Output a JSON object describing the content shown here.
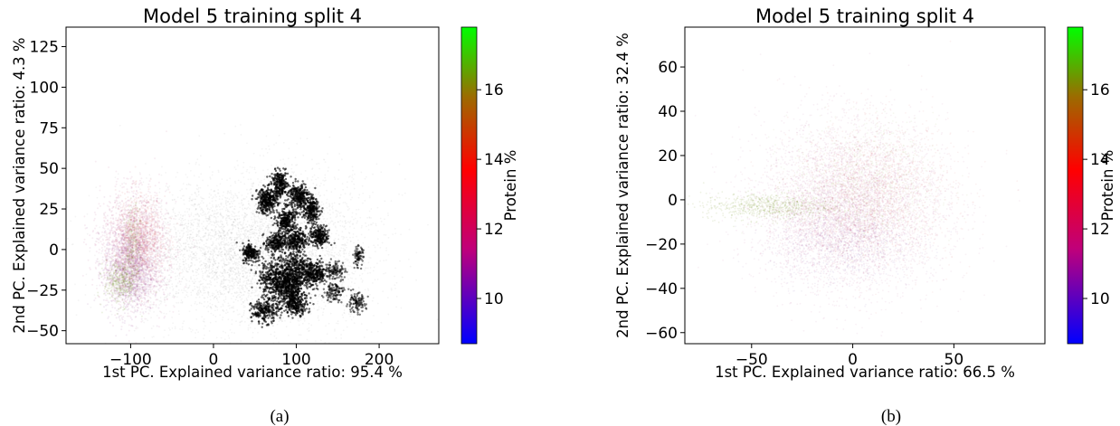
{
  "chart_data": [
    {
      "type": "scatter",
      "title": "Model 5 training split 4",
      "xlabel": "1st PC. Explained variance ratio: 95.4 %",
      "ylabel": "2nd PC. Explained variance ratio: 4.3 %",
      "xlim": [
        -178,
        272
      ],
      "ylim": [
        -58,
        137
      ],
      "xticks": [
        -100,
        0,
        100,
        200
      ],
      "yticks": [
        -50,
        -25,
        0,
        25,
        50,
        75,
        100,
        125
      ],
      "grid": false,
      "colorbar": {
        "label": "Protein %",
        "range": [
          8.7,
          17.8
        ],
        "ticks": [
          10,
          12,
          14,
          16
        ],
        "colors": [
          "#0000ff",
          "#c0007a",
          "#ff0000",
          "#9c6b00",
          "#00ff00"
        ]
      },
      "caption": "(a)",
      "series": [
        {
          "color": "#000000",
          "clusters": [
            {
              "x": 10,
              "y": -2,
              "sx": 62,
              "sy": 22,
              "n": 2800,
              "alpha": 0.045,
              "r": 0.9
            },
            {
              "x": 95,
              "y": 0,
              "sx": 55,
              "sy": 25,
              "n": 2000,
              "alpha": 0.045,
              "r": 0.9
            },
            {
              "x": 65,
              "y": 30,
              "sx": 6,
              "sy": 4,
              "n": 320,
              "alpha": 0.6,
              "r": 1.2
            },
            {
              "x": 80,
              "y": 40,
              "sx": 5,
              "sy": 4,
              "n": 260,
              "alpha": 0.6,
              "r": 1.2
            },
            {
              "x": 103,
              "y": 33,
              "sx": 6,
              "sy": 4,
              "n": 280,
              "alpha": 0.6,
              "r": 1.2
            },
            {
              "x": 88,
              "y": 18,
              "sx": 6,
              "sy": 4,
              "n": 280,
              "alpha": 0.6,
              "r": 1.2
            },
            {
              "x": 118,
              "y": 24,
              "sx": 5,
              "sy": 4,
              "n": 250,
              "alpha": 0.6,
              "r": 1.2
            },
            {
              "x": 100,
              "y": 6,
              "sx": 6,
              "sy": 3.5,
              "n": 260,
              "alpha": 0.6,
              "r": 1.2
            },
            {
              "x": 128,
              "y": 8,
              "sx": 6,
              "sy": 3,
              "n": 230,
              "alpha": 0.6,
              "r": 1.2
            },
            {
              "x": 75,
              "y": 4,
              "sx": 6,
              "sy": 3,
              "n": 230,
              "alpha": 0.6,
              "r": 1.2
            },
            {
              "x": 45,
              "y": -2,
              "sx": 5,
              "sy": 3,
              "n": 200,
              "alpha": 0.6,
              "r": 1.2
            },
            {
              "x": 98,
              "y": -13,
              "sx": 11,
              "sy": 6,
              "n": 440,
              "alpha": 0.6,
              "r": 1.2
            },
            {
              "x": 75,
              "y": -18,
              "sx": 10,
              "sy": 6,
              "n": 420,
              "alpha": 0.6,
              "r": 1.2
            },
            {
              "x": 92,
              "y": -25,
              "sx": 9,
              "sy": 5,
              "n": 360,
              "alpha": 0.6,
              "r": 1.2
            },
            {
              "x": 122,
              "y": -15,
              "sx": 8,
              "sy": 4,
              "n": 280,
              "alpha": 0.6,
              "r": 1.2
            },
            {
              "x": 62,
              "y": -38,
              "sx": 8,
              "sy": 3.5,
              "n": 240,
              "alpha": 0.6,
              "r": 1.2
            },
            {
              "x": 100,
              "y": -34,
              "sx": 7,
              "sy": 3,
              "n": 220,
              "alpha": 0.6,
              "r": 1.2
            },
            {
              "x": 147,
              "y": -13,
              "sx": 6,
              "sy": 3,
              "n": 110,
              "alpha": 0.5,
              "r": 1.2
            },
            {
              "x": 145,
              "y": -26,
              "sx": 6,
              "sy": 3,
              "n": 110,
              "alpha": 0.5,
              "r": 1.2
            },
            {
              "x": 172,
              "y": -33,
              "sx": 6,
              "sy": 3,
              "n": 110,
              "alpha": 0.5,
              "r": 1.2
            },
            {
              "x": 175,
              "y": -4,
              "sx": 3,
              "sy": 3,
              "n": 80,
              "alpha": 0.5,
              "r": 1.2
            }
          ]
        },
        {
          "color": "#b0327a",
          "clusters": [
            {
              "x": -95,
              "y": 0,
              "sx": 20,
              "sy": 17,
              "n": 2400,
              "alpha": 0.09,
              "r": 1.0
            }
          ]
        },
        {
          "color": "#8a3890",
          "clusters": [
            {
              "x": -102,
              "y": -14,
              "sx": 15,
              "sy": 13,
              "n": 1000,
              "alpha": 0.1,
              "r": 1.0
            }
          ]
        },
        {
          "color": "#d84040",
          "clusters": [
            {
              "x": -88,
              "y": 8,
              "sx": 15,
              "sy": 13,
              "n": 700,
              "alpha": 0.09,
              "r": 1.0
            }
          ]
        },
        {
          "color": "#7a9a30",
          "clusters": [
            {
              "x": -112,
              "y": -20,
              "sx": 10,
              "sy": 7,
              "n": 350,
              "alpha": 0.14,
              "r": 1.0
            },
            {
              "x": -97,
              "y": 2,
              "sx": 5,
              "sy": 12,
              "n": 250,
              "alpha": 0.12,
              "r": 1.0
            }
          ]
        }
      ]
    },
    {
      "type": "scatter",
      "title": "Model 5 training split 4",
      "xlabel": "1st PC. Explained variance ratio: 66.5 %",
      "ylabel": "2nd PC. Explained variance ratio: 32.4 %",
      "xlim": [
        -83,
        95
      ],
      "ylim": [
        -65,
        78
      ],
      "xticks": [
        -50,
        0,
        50
      ],
      "yticks": [
        -60,
        -40,
        -20,
        0,
        20,
        40,
        60
      ],
      "grid": false,
      "colorbar": {
        "label": "Protein %",
        "range": [
          8.7,
          17.8
        ],
        "ticks": [
          10,
          12,
          14,
          16
        ],
        "colors": [
          "#0000ff",
          "#c0007a",
          "#ff0000",
          "#9c6b00",
          "#00ff00"
        ]
      },
      "caption": "(b)",
      "series": [
        {
          "color": "#b0327a",
          "clusters": [
            {
              "x": 0,
              "y": -2,
              "sx": 23,
              "sy": 19,
              "n": 4500,
              "alpha": 0.07,
              "r": 0.9
            },
            {
              "x": -10,
              "y": -12,
              "sx": 17,
              "sy": 11,
              "n": 1200,
              "alpha": 0.08,
              "r": 0.9
            }
          ]
        },
        {
          "color": "#d84040",
          "clusters": [
            {
              "x": 10,
              "y": 3,
              "sx": 20,
              "sy": 16,
              "n": 1800,
              "alpha": 0.07,
              "r": 0.9
            }
          ]
        },
        {
          "color": "#7a9a30",
          "clusters": [
            {
              "x": 5,
              "y": 6,
              "sx": 18,
              "sy": 14,
              "n": 900,
              "alpha": 0.07,
              "r": 0.9
            },
            {
              "x": -42,
              "y": -3,
              "sx": 16,
              "sy": 3,
              "n": 700,
              "alpha": 0.13,
              "r": 0.9
            }
          ]
        },
        {
          "color": "#6a3a9a",
          "clusters": [
            {
              "x": -5,
              "y": -20,
              "sx": 18,
              "sy": 9,
              "n": 700,
              "alpha": 0.07,
              "r": 0.9
            }
          ]
        }
      ]
    }
  ]
}
